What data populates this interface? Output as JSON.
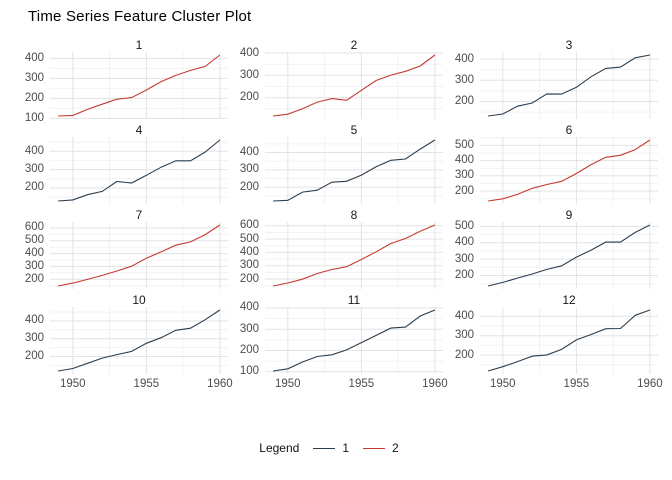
{
  "title": "Time Series Feature Cluster Plot",
  "colors": {
    "cluster1": "#2b3e50",
    "cluster2": "#c63a31",
    "grid_major": "#e3e3e3",
    "grid_minor": "#f2f2f2",
    "tick_label": "#4d4d4d",
    "facet_label": "#1a1a1a"
  },
  "legend": {
    "title": "Legend",
    "items": [
      {
        "label": "1",
        "color_key": "cluster1"
      },
      {
        "label": "2",
        "color_key": "cluster2"
      }
    ]
  },
  "chart_data": {
    "type": "line",
    "title": "Time Series Feature Cluster Plot",
    "layout": {
      "rows": 4,
      "cols": 3,
      "grid": true,
      "legend_position": "bottom"
    },
    "x": [
      1949,
      1950,
      1951,
      1952,
      1953,
      1954,
      1955,
      1956,
      1957,
      1958,
      1959,
      1960
    ],
    "xticks": [
      1950,
      1955,
      1960
    ],
    "xtick_labels": [
      "1950",
      "1955",
      "1960"
    ],
    "ytick_step": 100,
    "facets": [
      {
        "label": "1",
        "cluster": "2",
        "color_key": "cluster2",
        "yticks": [
          100,
          200,
          300,
          400
        ],
        "values": [
          112,
          115,
          145,
          171,
          196,
          204,
          242,
          284,
          315,
          340,
          360,
          417
        ]
      },
      {
        "label": "2",
        "cluster": "2",
        "color_key": "cluster2",
        "yticks": [
          200,
          300,
          400
        ],
        "values": [
          118,
          126,
          150,
          180,
          196,
          188,
          233,
          277,
          301,
          318,
          342,
          391
        ]
      },
      {
        "label": "3",
        "cluster": "1",
        "color_key": "cluster1",
        "yticks": [
          200,
          300,
          400
        ],
        "values": [
          132,
          141,
          178,
          193,
          236,
          235,
          267,
          317,
          356,
          362,
          406,
          419
        ]
      },
      {
        "label": "4",
        "cluster": "1",
        "color_key": "cluster1",
        "yticks": [
          200,
          300,
          400
        ],
        "values": [
          129,
          135,
          163,
          181,
          235,
          227,
          269,
          313,
          348,
          348,
          396,
          461
        ]
      },
      {
        "label": "5",
        "cluster": "1",
        "color_key": "cluster1",
        "yticks": [
          200,
          300,
          400
        ],
        "values": [
          121,
          125,
          172,
          183,
          229,
          234,
          270,
          318,
          355,
          363,
          420,
          472
        ]
      },
      {
        "label": "6",
        "cluster": "2",
        "color_key": "cluster2",
        "yticks": [
          200,
          300,
          400,
          500
        ],
        "values": [
          135,
          149,
          178,
          218,
          243,
          264,
          315,
          374,
          422,
          435,
          472,
          535
        ]
      },
      {
        "label": "7",
        "cluster": "2",
        "color_key": "cluster2",
        "yticks": [
          200,
          300,
          400,
          500,
          600
        ],
        "values": [
          148,
          170,
          199,
          230,
          264,
          302,
          364,
          413,
          465,
          491,
          548,
          622
        ]
      },
      {
        "label": "8",
        "cluster": "2",
        "color_key": "cluster2",
        "yticks": [
          200,
          300,
          400,
          500,
          600
        ],
        "values": [
          148,
          170,
          199,
          242,
          272,
          293,
          347,
          405,
          467,
          505,
          559,
          606
        ]
      },
      {
        "label": "9",
        "cluster": "1",
        "color_key": "cluster1",
        "yticks": [
          200,
          300,
          400,
          500
        ],
        "values": [
          136,
          158,
          184,
          209,
          237,
          259,
          312,
          355,
          404,
          404,
          463,
          508
        ]
      },
      {
        "label": "10",
        "cluster": "1",
        "color_key": "cluster1",
        "yticks": [
          200,
          300,
          400
        ],
        "values": [
          119,
          133,
          162,
          191,
          211,
          229,
          274,
          306,
          347,
          359,
          407,
          461
        ]
      },
      {
        "label": "11",
        "cluster": "1",
        "color_key": "cluster1",
        "yticks": [
          100,
          200,
          300,
          400
        ],
        "values": [
          104,
          114,
          146,
          172,
          180,
          203,
          237,
          271,
          305,
          310,
          362,
          390
        ]
      },
      {
        "label": "12",
        "cluster": "1",
        "color_key": "cluster1",
        "yticks": [
          200,
          300,
          400
        ],
        "values": [
          118,
          140,
          166,
          194,
          201,
          229,
          278,
          306,
          336,
          337,
          405,
          432
        ]
      }
    ]
  }
}
